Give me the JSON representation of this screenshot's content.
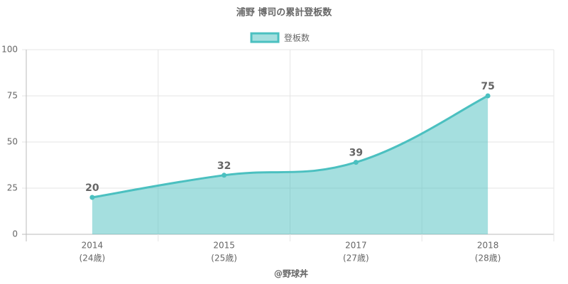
{
  "chart_data": {
    "type": "area",
    "title": "浦野 博司の累計登板数",
    "categories": [
      "2014",
      "2015",
      "2017",
      "2018"
    ],
    "category_sublabels": [
      "(24歳)",
      "(25歳)",
      "(27歳)",
      "(28歳)"
    ],
    "series": [
      {
        "name": "登板数",
        "color": "#4bc0c0",
        "values": [
          20,
          32,
          39,
          75
        ]
      }
    ],
    "ylim": [
      0,
      100
    ],
    "yticks": [
      0,
      25,
      50,
      75,
      100
    ],
    "grid": true,
    "x_label": "@野球丼",
    "legend": "top"
  }
}
